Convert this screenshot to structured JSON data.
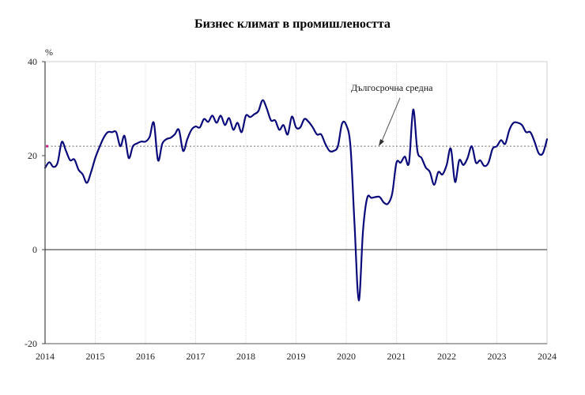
{
  "chart_data": {
    "type": "line",
    "title": "Бизнес климат в промишлеността",
    "xlabel": "",
    "ylabel": "%",
    "ylim": [
      -20,
      40
    ],
    "xlim": [
      2014,
      2024
    ],
    "yticks": [
      -20,
      0,
      20,
      40
    ],
    "xticks": [
      "2014",
      "2015",
      "2016",
      "2017",
      "2018",
      "2019",
      "2020",
      "2021",
      "2022",
      "2023",
      "2024"
    ],
    "grid": "vertical dotted at years",
    "legend": null,
    "reference_line": {
      "label": "Дългосрочна средна",
      "value": 22.0,
      "style": "dotted"
    },
    "annotations": [
      {
        "text": "Дългосрочна средна",
        "arrow_to": [
          2020.7,
          22.0
        ]
      }
    ],
    "series": [
      {
        "name": "Бизнес климат в промишлеността",
        "color": "#0a0a7a",
        "start": "2014-01",
        "frequency": "monthly",
        "values": [
          17.4,
          18.6,
          17.6,
          18.5,
          22.9,
          21.0,
          19.0,
          19.2,
          17.0,
          16.0,
          14.2,
          16.5,
          19.5,
          21.8,
          23.8,
          25.0,
          25.0,
          25.0,
          22.0,
          24.2,
          19.5,
          22.0,
          22.6,
          23.0,
          23.0,
          24.0,
          27.0,
          19.0,
          22.5,
          23.5,
          23.8,
          24.5,
          25.5,
          21.0,
          23.5,
          25.5,
          26.2,
          26.0,
          27.8,
          27.2,
          28.5,
          27.0,
          28.5,
          26.5,
          28.0,
          25.5,
          27.0,
          25.0,
          28.5,
          28.2,
          28.8,
          29.5,
          31.8,
          30.0,
          27.5,
          27.5,
          25.5,
          26.5,
          24.5,
          28.3,
          26.0,
          26.0,
          27.8,
          27.2,
          26.0,
          24.5,
          24.5,
          22.5,
          21.0,
          21.0,
          22.0,
          26.8,
          26.5,
          22.0,
          5.0,
          -10.8,
          4.0,
          11.0,
          11.0,
          11.2,
          11.2,
          10.0,
          9.8,
          12.0,
          18.5,
          18.5,
          19.8,
          18.5,
          29.8,
          21.0,
          19.5,
          17.5,
          16.5,
          13.8,
          16.5,
          16.0,
          18.0,
          21.5,
          14.4,
          19.0,
          18.0,
          19.5,
          22.0,
          18.5,
          19.0,
          17.8,
          18.5,
          21.5,
          22.0,
          23.3,
          22.5,
          25.5,
          27.0,
          27.0,
          26.5,
          25.0,
          25.0,
          23.0,
          20.5,
          20.5,
          23.5
        ]
      }
    ]
  },
  "page": {
    "title": "Бизнес климат в промишлеността",
    "unit_label": "%",
    "avg_label": "Дългосрочна средна",
    "colors": {
      "line": "#0a0a7a",
      "avg_line": "#888888",
      "avg_marker": "#cc2288",
      "grid": "#d8d8d8",
      "axis": "#555555",
      "zero_line": "#555555"
    }
  }
}
